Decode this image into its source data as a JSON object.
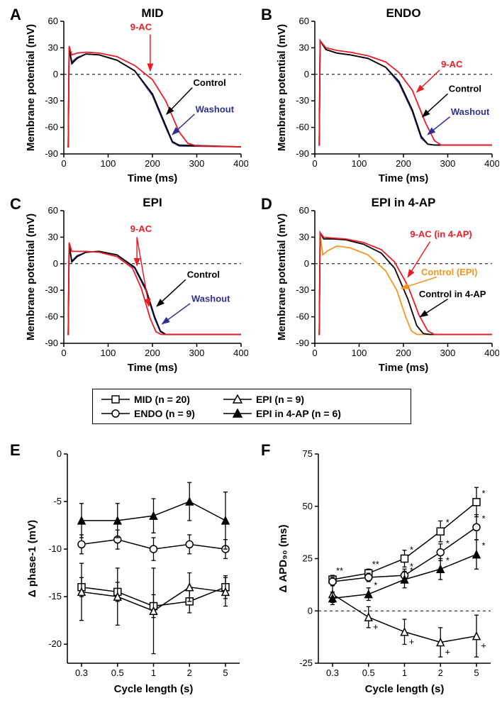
{
  "panels": {
    "A": {
      "label": "A",
      "title": "MID",
      "xlabel": "Time (ms)",
      "ylabel": "Membrane potential (mV)"
    },
    "B": {
      "label": "B",
      "title": "ENDO",
      "xlabel": "Time (ms)",
      "ylabel": "Membrane potential (mV)"
    },
    "C": {
      "label": "C",
      "title": "EPI",
      "xlabel": "Time (ms)",
      "ylabel": "Membrane potential (mV)"
    },
    "D": {
      "label": "D",
      "title": "EPI in 4-AP",
      "xlabel": "Time (ms)",
      "ylabel": "Membrane potential (mV)"
    },
    "E": {
      "label": "E",
      "ylabel": "Δ phase-1 (mV)",
      "xlabel": "Cycle length (s)"
    },
    "F": {
      "label": "F",
      "ylabel": "Δ APD₉₀ (ms)",
      "xlabel": "Cycle length (s)"
    }
  },
  "annotations": {
    "9ac": "9-AC",
    "control": "Control",
    "washout": "Washout",
    "9ac_4ap": "9-AC (in 4-AP)",
    "control_epi": "Control (EPI)",
    "control_4ap": "Control in 4-AP"
  },
  "colors": {
    "nineAC": "#ed1c24",
    "control": "#000000",
    "washout": "#2e3192",
    "orange": "#f7941d",
    "black": "#000000"
  },
  "ap_axes": {
    "x": {
      "ticks": [
        0,
        100,
        200,
        300,
        400
      ],
      "lim": [
        0,
        400
      ]
    },
    "y": {
      "ticks": [
        -90,
        -60,
        -30,
        0,
        30,
        60
      ],
      "lim": [
        -90,
        60
      ]
    }
  },
  "ap_traces": {
    "A": {
      "control": [
        [
          8,
          -82
        ],
        [
          10,
          -82
        ],
        [
          12,
          30
        ],
        [
          18,
          12
        ],
        [
          30,
          18
        ],
        [
          50,
          23
        ],
        [
          80,
          22
        ],
        [
          120,
          16
        ],
        [
          160,
          4
        ],
        [
          200,
          -22
        ],
        [
          230,
          -58
        ],
        [
          245,
          -76
        ],
        [
          260,
          -80
        ],
        [
          400,
          -82
        ]
      ],
      "nineAC": [
        [
          8,
          -82
        ],
        [
          10,
          -82
        ],
        [
          12,
          32
        ],
        [
          18,
          22
        ],
        [
          30,
          24
        ],
        [
          50,
          25
        ],
        [
          80,
          24
        ],
        [
          120,
          20
        ],
        [
          160,
          10
        ],
        [
          200,
          -6
        ],
        [
          230,
          -30
        ],
        [
          260,
          -65
        ],
        [
          280,
          -78
        ],
        [
          300,
          -81
        ],
        [
          400,
          -82
        ]
      ],
      "washout": [
        [
          8,
          -82
        ],
        [
          10,
          -82
        ],
        [
          12,
          30
        ],
        [
          18,
          14
        ],
        [
          30,
          19
        ],
        [
          50,
          23
        ],
        [
          80,
          22
        ],
        [
          120,
          16
        ],
        [
          160,
          4
        ],
        [
          200,
          -24
        ],
        [
          230,
          -60
        ],
        [
          245,
          -77
        ],
        [
          260,
          -81
        ],
        [
          400,
          -82
        ]
      ]
    },
    "B": {
      "control": [
        [
          8,
          -80
        ],
        [
          10,
          -80
        ],
        [
          12,
          38
        ],
        [
          25,
          28
        ],
        [
          50,
          24
        ],
        [
          80,
          22
        ],
        [
          120,
          18
        ],
        [
          160,
          8
        ],
        [
          190,
          -8
        ],
        [
          220,
          -40
        ],
        [
          240,
          -70
        ],
        [
          255,
          -79
        ],
        [
          270,
          -80
        ],
        [
          400,
          -80
        ]
      ],
      "nineAC": [
        [
          8,
          -80
        ],
        [
          10,
          -80
        ],
        [
          12,
          38
        ],
        [
          25,
          30
        ],
        [
          50,
          27
        ],
        [
          80,
          25
        ],
        [
          120,
          21
        ],
        [
          160,
          14
        ],
        [
          190,
          2
        ],
        [
          220,
          -18
        ],
        [
          250,
          -55
        ],
        [
          270,
          -75
        ],
        [
          285,
          -80
        ],
        [
          400,
          -80
        ]
      ],
      "washout": [
        [
          8,
          -80
        ],
        [
          10,
          -80
        ],
        [
          12,
          38
        ],
        [
          25,
          28
        ],
        [
          50,
          24
        ],
        [
          80,
          22
        ],
        [
          120,
          18
        ],
        [
          160,
          8
        ],
        [
          190,
          -10
        ],
        [
          220,
          -42
        ],
        [
          240,
          -72
        ],
        [
          255,
          -79
        ],
        [
          270,
          -80
        ],
        [
          400,
          -80
        ]
      ]
    },
    "C": {
      "control": [
        [
          8,
          -80
        ],
        [
          10,
          -80
        ],
        [
          12,
          22
        ],
        [
          18,
          2
        ],
        [
          30,
          8
        ],
        [
          50,
          13
        ],
        [
          80,
          14
        ],
        [
          120,
          10
        ],
        [
          160,
          -4
        ],
        [
          185,
          -28
        ],
        [
          205,
          -60
        ],
        [
          218,
          -76
        ],
        [
          230,
          -80
        ],
        [
          400,
          -80
        ]
      ],
      "nineAC": [
        [
          8,
          -80
        ],
        [
          10,
          -80
        ],
        [
          12,
          24
        ],
        [
          18,
          14
        ],
        [
          30,
          14
        ],
        [
          50,
          14
        ],
        [
          80,
          13
        ],
        [
          120,
          8
        ],
        [
          155,
          -5
        ],
        [
          175,
          -28
        ],
        [
          195,
          -62
        ],
        [
          208,
          -77
        ],
        [
          220,
          -80
        ],
        [
          400,
          -80
        ]
      ],
      "washout": [
        [
          8,
          -80
        ],
        [
          10,
          -80
        ],
        [
          12,
          22
        ],
        [
          18,
          3
        ],
        [
          30,
          9
        ],
        [
          50,
          13
        ],
        [
          80,
          14
        ],
        [
          120,
          10
        ],
        [
          160,
          -5
        ],
        [
          185,
          -30
        ],
        [
          205,
          -62
        ],
        [
          218,
          -77
        ],
        [
          230,
          -80
        ],
        [
          400,
          -80
        ]
      ]
    },
    "D": {
      "orange": [
        [
          8,
          -80
        ],
        [
          10,
          -80
        ],
        [
          12,
          32
        ],
        [
          18,
          10
        ],
        [
          30,
          15
        ],
        [
          50,
          20
        ],
        [
          80,
          18
        ],
        [
          120,
          10
        ],
        [
          160,
          -8
        ],
        [
          185,
          -30
        ],
        [
          205,
          -60
        ],
        [
          218,
          -76
        ],
        [
          230,
          -80
        ],
        [
          400,
          -80
        ]
      ],
      "control": [
        [
          8,
          -80
        ],
        [
          10,
          -80
        ],
        [
          12,
          35
        ],
        [
          20,
          28
        ],
        [
          40,
          28
        ],
        [
          70,
          27
        ],
        [
          110,
          22
        ],
        [
          150,
          12
        ],
        [
          180,
          -5
        ],
        [
          210,
          -40
        ],
        [
          230,
          -70
        ],
        [
          245,
          -79
        ],
        [
          260,
          -80
        ],
        [
          400,
          -80
        ]
      ],
      "nineAC": [
        [
          8,
          -80
        ],
        [
          10,
          -80
        ],
        [
          12,
          35
        ],
        [
          20,
          30
        ],
        [
          40,
          29
        ],
        [
          70,
          28
        ],
        [
          110,
          24
        ],
        [
          150,
          16
        ],
        [
          180,
          2
        ],
        [
          210,
          -25
        ],
        [
          235,
          -58
        ],
        [
          255,
          -76
        ],
        [
          270,
          -80
        ],
        [
          400,
          -80
        ]
      ]
    }
  },
  "legend": {
    "items": [
      {
        "marker": "square-open",
        "label": "MID (n = 20)"
      },
      {
        "marker": "circle-open",
        "label": "ENDO (n = 9)"
      },
      {
        "marker": "triangle-open",
        "label": "EPI (n = 9)"
      },
      {
        "marker": "triangle-filled",
        "label": "EPI in 4-AP (n = 6)"
      }
    ]
  },
  "panelE": {
    "x_categories": [
      "0.3",
      "0.5",
      "1",
      "2",
      "5"
    ],
    "y": {
      "ticks": [
        -20,
        -15,
        -10,
        -5,
        0
      ],
      "lim": [
        -22,
        0
      ]
    },
    "series": {
      "MID": {
        "marker": "square-open",
        "values": [
          -14,
          -14.5,
          -16,
          -15.5,
          -14
        ],
        "err": [
          1.0,
          1.0,
          1.2,
          1.2,
          1.2
        ]
      },
      "ENDO": {
        "marker": "circle-open",
        "values": [
          -9.5,
          -9.0,
          -10,
          -9.5,
          -10
        ],
        "err": [
          1.0,
          1.0,
          1.2,
          1.0,
          1.0
        ]
      },
      "EPI": {
        "marker": "triangle-open",
        "values": [
          -14.5,
          -15,
          -16.5,
          -14,
          -14.5
        ],
        "err": [
          3.0,
          3.0,
          4.5,
          1.5,
          1.5
        ]
      },
      "EPI_4AP": {
        "marker": "triangle-filled",
        "values": [
          -7.0,
          -7.0,
          -6.5,
          -5.0,
          -7.0
        ],
        "err": [
          1.8,
          1.8,
          1.8,
          2.0,
          3.0
        ]
      }
    }
  },
  "panelF": {
    "x_categories": [
      "0.3",
      "0.5",
      "1",
      "2",
      "5"
    ],
    "y": {
      "ticks": [
        -25,
        0,
        25,
        50,
        75
      ],
      "lim": [
        -25,
        75
      ]
    },
    "series": {
      "MID": {
        "marker": "square-open",
        "values": [
          15,
          18,
          25,
          38,
          52
        ],
        "err": [
          2,
          2,
          4,
          5,
          7
        ],
        "sig": [
          "**",
          "**",
          "*",
          "*",
          "*"
        ]
      },
      "ENDO": {
        "marker": "circle-open",
        "values": [
          14,
          16,
          17,
          28,
          40
        ],
        "err": [
          2,
          2,
          3,
          4,
          6
        ],
        "sig": [
          "",
          "",
          "*",
          "*",
          "*"
        ]
      },
      "EPI": {
        "marker": "triangle-open",
        "values": [
          8,
          -3,
          -10,
          -15,
          -12
        ],
        "err": [
          4,
          5,
          6,
          7,
          10
        ],
        "sig": [
          "",
          "+",
          "+",
          "+",
          "+"
        ]
      },
      "EPI_4AP": {
        "marker": "triangle-filled",
        "values": [
          6,
          8,
          15,
          20,
          27
        ],
        "err": [
          3,
          3,
          4,
          5,
          7
        ],
        "sig": [
          "",
          "*",
          "*",
          "*",
          "*"
        ]
      }
    }
  },
  "typography": {
    "panel_label_fontsize": 22,
    "axis_title_fontsize": 15,
    "tick_fontsize": 13,
    "annot_fontsize": 13
  }
}
